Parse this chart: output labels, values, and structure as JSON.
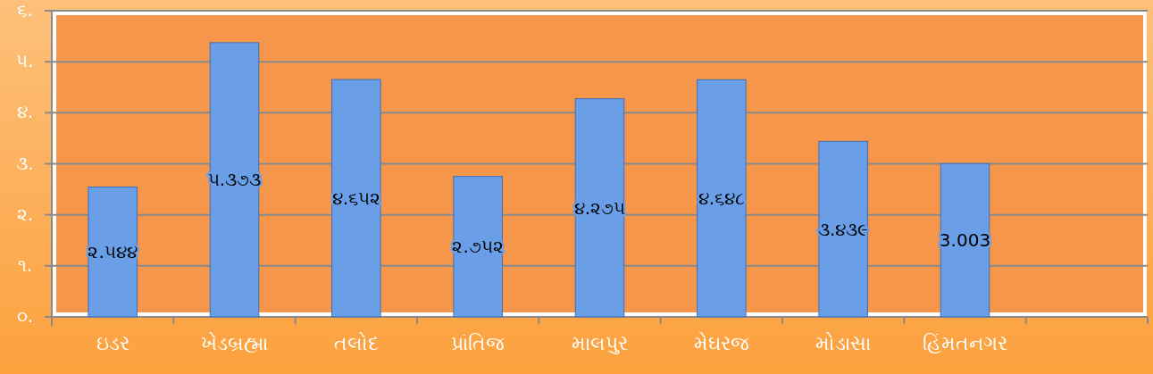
{
  "chart_data": {
    "type": "bar",
    "categories": [
      "ઇડર",
      "ખેડબ્રહ્મા",
      "તલોદ",
      "પ્રાંતિજ",
      "માલપુર",
      "મેઘરજ",
      "મોડાસા",
      "હિંમતનગર",
      null
    ],
    "values": [
      2.544,
      5.373,
      4.652,
      2.752,
      4.275,
      4.648,
      3.439,
      3.003,
      null
    ],
    "value_labels": [
      "૨.૫૪૪",
      "૫.૩૭૩",
      "૪.૬૫૨",
      "૨.૭૫૨",
      "૪.૨૭૫",
      "૪.૬૪૮",
      "૩.૪૩૯",
      "3.003",
      null
    ],
    "color": "#6a9fe8",
    "ylim": [
      0,
      6
    ],
    "yticks": [
      {
        "value": 0,
        "label": "૦."
      },
      {
        "value": 1,
        "label": "૧."
      },
      {
        "value": 2,
        "label": "૨."
      },
      {
        "value": 3,
        "label": "૩."
      },
      {
        "value": 4,
        "label": "૪."
      },
      {
        "value": 5,
        "label": "૫."
      },
      {
        "value": 6,
        "label": "૬."
      }
    ],
    "grid": "y"
  }
}
